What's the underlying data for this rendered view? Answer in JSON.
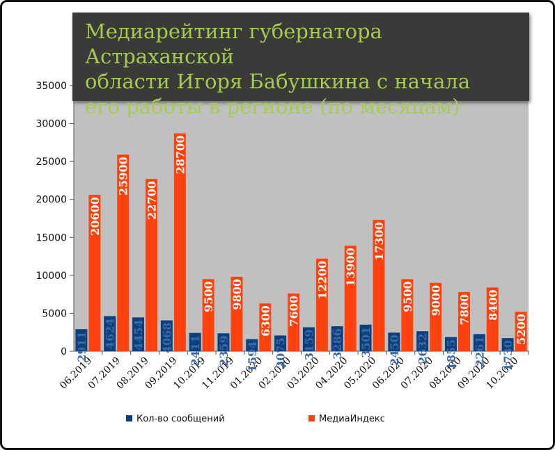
{
  "chart_data": {
    "type": "bar",
    "title": "Медиарейтинг губернатора Астраханской области Игоря Бабушкина с начала его работы в регионе (по месяцам)",
    "title_lines": [
      "Медиарейтинг губернатора Астраханской",
      "области Игоря Бабушкина с начала",
      "его работы в регионе (по месяцам)"
    ],
    "categories": [
      "06.2019",
      "07.2019",
      "08.2019",
      "09.2019",
      "10.2019",
      "11.2019",
      "01.2020",
      "02.2020",
      "03.2020",
      "04.2020",
      "05.2020",
      "06.2020",
      "07.2020",
      "08.2020",
      "09.2020",
      "10.2020"
    ],
    "series": [
      {
        "name": "Кол-во сообщений",
        "color": "#0c3f7e",
        "label_color": "#3a6aa6",
        "values": [
          2911,
          4624,
          4454,
          4068,
          2411,
          2359,
          1594,
          2075,
          3159,
          3286,
          3501,
          2450,
          2632,
          1855,
          2261,
          1730
        ]
      },
      {
        "name": "МедиаИндекс",
        "color": "#ff420e",
        "label_color": "#ffffff",
        "values": [
          20600,
          25900,
          22700,
          28700,
          9500,
          9800,
          6300,
          7600,
          12200,
          13900,
          17300,
          9500,
          9000,
          7800,
          8400,
          5200
        ]
      }
    ],
    "ylim": [
      0,
      35000
    ],
    "yticks": [
      0,
      5000,
      10000,
      15000,
      20000,
      25000,
      30000,
      35000
    ],
    "grid": false,
    "plot_background": "#c0c0c0",
    "legend_position": "bottom",
    "xlabel": "",
    "ylabel": ""
  }
}
